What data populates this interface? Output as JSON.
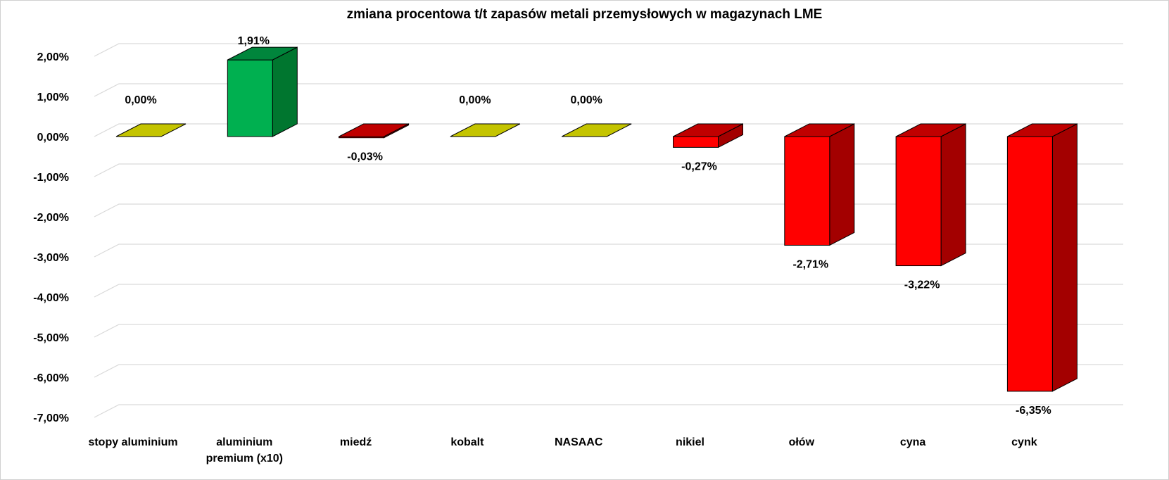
{
  "chart_data": {
    "type": "bar",
    "title": "zmiana procentowa t/t zapasów metali przemysłowych w magazynach LME",
    "categories": [
      [
        "stopy aluminium"
      ],
      [
        "aluminium",
        "premium (x10)"
      ],
      [
        "miedź"
      ],
      [
        "kobalt"
      ],
      [
        "NASAAC"
      ],
      [
        "nikiel"
      ],
      [
        "ołów"
      ],
      [
        "cyna"
      ],
      [
        "cynk"
      ]
    ],
    "values": [
      0.0,
      1.91,
      -0.03,
      0.0,
      0.0,
      -0.27,
      -2.71,
      -3.22,
      -6.35
    ],
    "data_labels": [
      "0,00%",
      "1,91%",
      "-0,03%",
      "0,00%",
      "0,00%",
      "-0,27%",
      "-2,71%",
      "-3,22%",
      "-6,35%"
    ],
    "ylim": [
      -7,
      2
    ],
    "yticks": [
      2,
      1,
      0,
      -1,
      -2,
      -3,
      -4,
      -5,
      -6,
      -7
    ],
    "ytick_labels": [
      "2,00%",
      "1,00%",
      "0,00%",
      "-1,00%",
      "-2,00%",
      "-3,00%",
      "-4,00%",
      "-5,00%",
      "-6,00%",
      "-7,00%"
    ],
    "xlabel": "",
    "ylabel": "",
    "grid": true,
    "style": "3d-column",
    "colors": {
      "positive_front": "#00b050",
      "positive_side": "#00762f",
      "positive_top": "#00853c",
      "negative_front": "#ff0000",
      "negative_side": "#a30000",
      "negative_top": "#c00000",
      "zero_top": "#c4c400",
      "gridline": "#d9d9d9",
      "wall_line": "#d9d9d9"
    }
  }
}
